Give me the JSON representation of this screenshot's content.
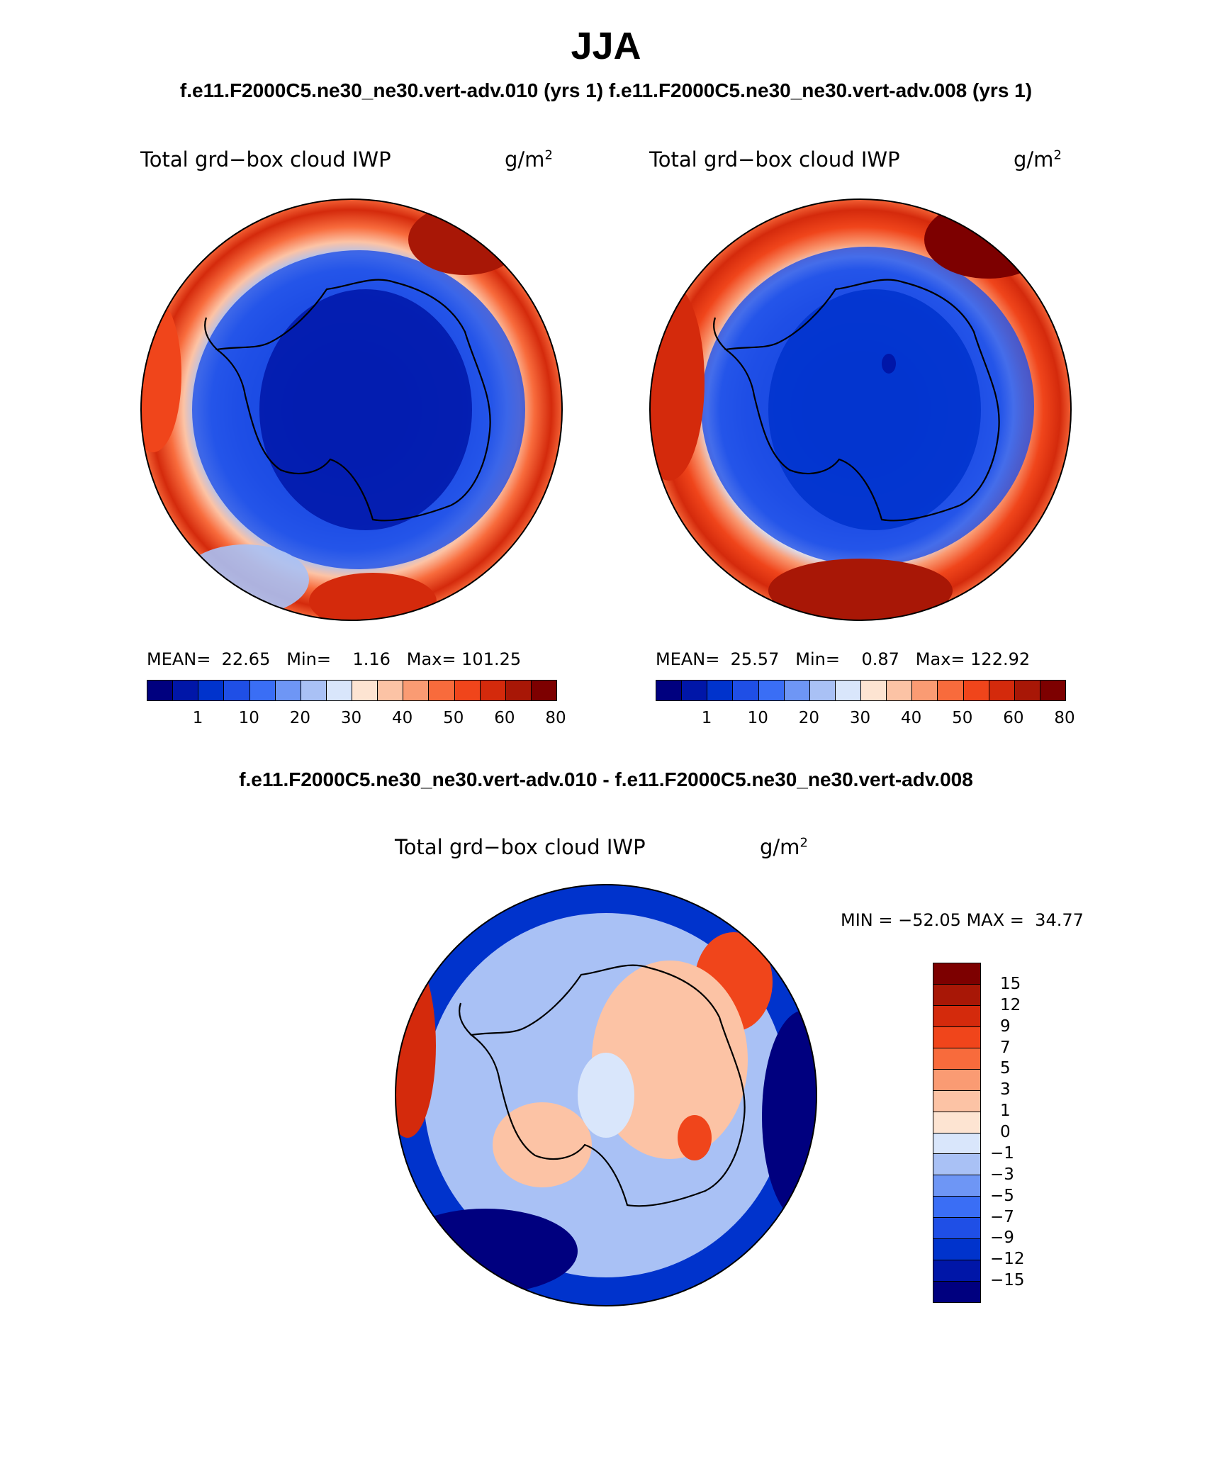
{
  "title": "JJA",
  "panel_left": {
    "case_title": "f.e11.F2000C5.ne30_ne30.vert-adv.010 (yrs 1)",
    "variable": "Total grd−box cloud IWP",
    "units": "g/m",
    "units_exp": "2",
    "stats": {
      "mean_label": "MEAN=",
      "mean": "22.65",
      "min_label": "Min=",
      "min": "1.16",
      "max_label": "Max=",
      "max": "101.25"
    }
  },
  "panel_right": {
    "case_title": "f.e11.F2000C5.ne30_ne30.vert-adv.008 (yrs 1)",
    "variable": "Total grd−box cloud IWP",
    "units": "g/m",
    "units_exp": "2",
    "stats": {
      "mean_label": "MEAN=",
      "mean": "25.57",
      "min_label": "Min=",
      "min": "0.87",
      "max_label": "Max=",
      "max": "122.92"
    }
  },
  "panel_diff": {
    "case_title": "f.e11.F2000C5.ne30_ne30.vert-adv.010 - f.e11.F2000C5.ne30_ne30.vert-adv.008",
    "variable": "Total grd−box cloud IWP",
    "units": "g/m",
    "units_exp": "2",
    "stats": {
      "min_label": "MIN =",
      "min": "−52.05",
      "max_label": "MAX =",
      "max": "34.77"
    }
  },
  "colorbar_abs": {
    "colors": [
      "#00007f",
      "#0016a8",
      "#0033cc",
      "#1f4fe6",
      "#3a6ef5",
      "#6e96f5",
      "#a9c1f5",
      "#d9e6fb",
      "#fde4d2",
      "#fcc3a5",
      "#fa9b73",
      "#f86b3c",
      "#f0451b",
      "#d42a0c",
      "#a81706",
      "#7d0000"
    ],
    "tick_labels": [
      "1",
      "10",
      "20",
      "30",
      "40",
      "50",
      "60",
      "80"
    ]
  },
  "colorbar_diff": {
    "colors": [
      "#7d0000",
      "#a81706",
      "#d42a0c",
      "#f0451b",
      "#f86b3c",
      "#fa9b73",
      "#fcc3a5",
      "#fde4d2",
      "#d9e6fb",
      "#a9c1f5",
      "#6e96f5",
      "#3a6ef5",
      "#1f4fe6",
      "#0033cc",
      "#0016a8",
      "#00007f"
    ],
    "tick_labels": [
      "15",
      "12",
      "9",
      "7",
      "5",
      "3",
      "1",
      "0",
      "−1",
      "−3",
      "−5",
      "−7",
      "−9",
      "−12",
      "−15"
    ]
  }
}
